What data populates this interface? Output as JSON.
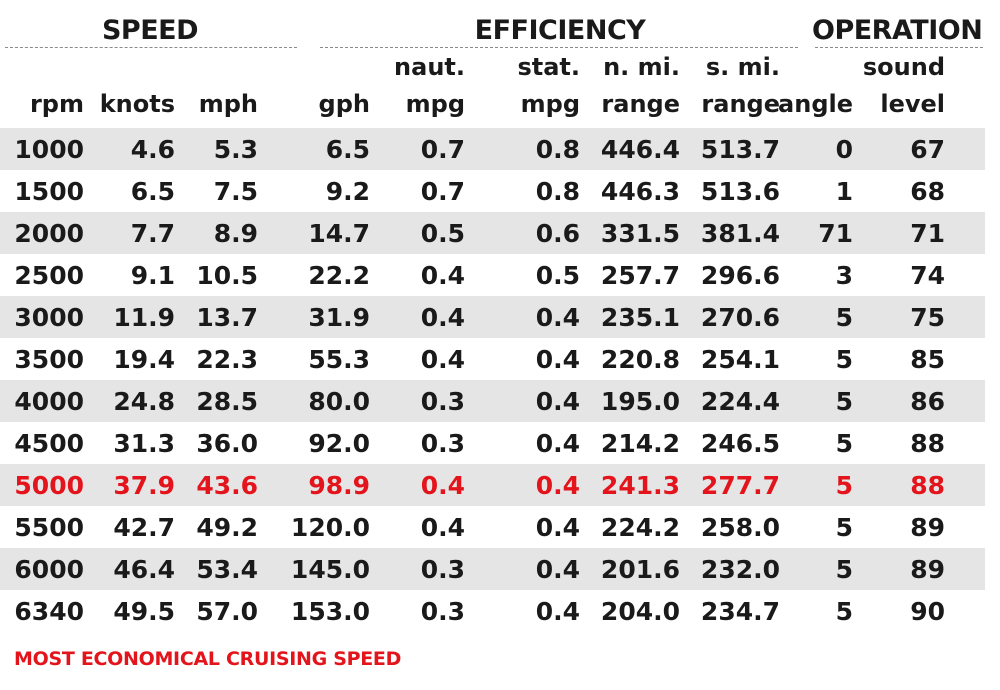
{
  "chart_data": {
    "type": "table",
    "groups": [
      "SPEED",
      "EFFICIENCY",
      "OPERATION"
    ],
    "columns": [
      {
        "line1": "",
        "line2": "rpm"
      },
      {
        "line1": "",
        "line2": "knots"
      },
      {
        "line1": "",
        "line2": "mph"
      },
      {
        "line1": "",
        "line2": "gph"
      },
      {
        "line1": "naut.",
        "line2": "mpg"
      },
      {
        "line1": "stat.",
        "line2": "mpg"
      },
      {
        "line1": "n. mi.",
        "line2": "range"
      },
      {
        "line1": "s. mi.",
        "line2": "range"
      },
      {
        "line1": "",
        "line2": "angle"
      },
      {
        "line1": "sound",
        "line2": "level"
      }
    ],
    "rows": [
      [
        "1000",
        "4.6",
        "5.3",
        "6.5",
        "0.7",
        "0.8",
        "446.4",
        "513.7",
        "0",
        "67"
      ],
      [
        "1500",
        "6.5",
        "7.5",
        "9.2",
        "0.7",
        "0.8",
        "446.3",
        "513.6",
        "1",
        "68"
      ],
      [
        "2000",
        "7.7",
        "8.9",
        "14.7",
        "0.5",
        "0.6",
        "331.5",
        "381.4",
        "71",
        "71"
      ],
      [
        "2500",
        "9.1",
        "10.5",
        "22.2",
        "0.4",
        "0.5",
        "257.7",
        "296.6",
        "3",
        "74"
      ],
      [
        "3000",
        "11.9",
        "13.7",
        "31.9",
        "0.4",
        "0.4",
        "235.1",
        "270.6",
        "5",
        "75"
      ],
      [
        "3500",
        "19.4",
        "22.3",
        "55.3",
        "0.4",
        "0.4",
        "220.8",
        "254.1",
        "5",
        "85"
      ],
      [
        "4000",
        "24.8",
        "28.5",
        "80.0",
        "0.3",
        "0.4",
        "195.0",
        "224.4",
        "5",
        "86"
      ],
      [
        "4500",
        "31.3",
        "36.0",
        "92.0",
        "0.3",
        "0.4",
        "214.2",
        "246.5",
        "5",
        "88"
      ],
      [
        "5000",
        "37.9",
        "43.6",
        "98.9",
        "0.4",
        "0.4",
        "241.3",
        "277.7",
        "5",
        "88"
      ],
      [
        "5500",
        "42.7",
        "49.2",
        "120.0",
        "0.4",
        "0.4",
        "224.2",
        "258.0",
        "5",
        "89"
      ],
      [
        "6000",
        "46.4",
        "53.4",
        "145.0",
        "0.3",
        "0.4",
        "201.6",
        "232.0",
        "5",
        "89"
      ],
      [
        "6340",
        "49.5",
        "57.0",
        "153.0",
        "0.3",
        "0.4",
        "204.0",
        "234.7",
        "5",
        "90"
      ]
    ],
    "highlight_row": 8,
    "highlight_color": "#e3141b",
    "shade_color": "#e5e5e5",
    "footnote": "MOST ECONOMICAL CRUISING SPEED"
  }
}
